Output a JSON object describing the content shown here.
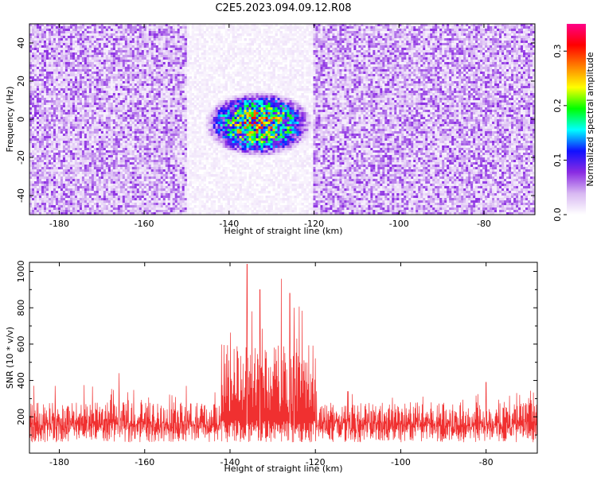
{
  "chart_data": [
    {
      "type": "heatmap",
      "title": "C2E5.2023.094.09.12.R08",
      "xlabel": "Height of straight line (km)",
      "ylabel": "Frequency (Hz)",
      "xlim": [
        -187,
        -68
      ],
      "ylim": [
        -50,
        50
      ],
      "x_ticks": [
        -180,
        -160,
        -140,
        -120,
        -100,
        -80
      ],
      "y_ticks": [
        -40,
        -20,
        0,
        20,
        40
      ],
      "grid": false,
      "colorbar": {
        "label": "Normalized spectral amplitude",
        "range": [
          0.0,
          0.35
        ],
        "ticks": [
          0.0,
          0.1,
          0.2,
          0.3
        ],
        "colormap": [
          "#ffffff",
          "#d8b8f2",
          "#8a2be2",
          "#1010ff",
          "#00ffff",
          "#00ff00",
          "#ffff00",
          "#ff8000",
          "#ff0000",
          "#ff0088"
        ]
      },
      "regions": [
        {
          "x_range": [
            -187,
            -150
          ],
          "typical_amplitude": 0.05
        },
        {
          "x_range": [
            -150,
            -120
          ],
          "typical_amplitude": 0.01
        },
        {
          "x_range": [
            -120,
            -68
          ],
          "typical_amplitude": 0.05
        }
      ],
      "peak_region": {
        "x_range": [
          -146,
          -120
        ],
        "y_range": [
          -20,
          15
        ],
        "max_amplitude": 0.33
      }
    },
    {
      "type": "line",
      "xlabel": "Height of straight line (km)",
      "ylabel": "SNR (10 * v/v)",
      "xlim": [
        -187,
        -68
      ],
      "ylim": [
        0,
        1050
      ],
      "x_ticks": [
        -180,
        -160,
        -140,
        -120,
        -100,
        -80
      ],
      "y_ticks": [
        200,
        400,
        600,
        800,
        1000
      ],
      "grid": false,
      "color": "#f03030",
      "baseline_range": [
        60,
        260
      ],
      "segments": [
        {
          "x_range": [
            -187,
            -142
          ],
          "typical_max": 280,
          "peak": 440
        },
        {
          "x_range": [
            -142,
            -120
          ],
          "typical_max": 600,
          "peak": 1040
        },
        {
          "x_range": [
            -120,
            -68
          ],
          "typical_max": 280,
          "peak": 390
        }
      ],
      "peaks": [
        {
          "x": -136,
          "y": 1040
        },
        {
          "x": -128,
          "y": 960
        },
        {
          "x": -133,
          "y": 900
        },
        {
          "x": -126,
          "y": 880
        },
        {
          "x": -125,
          "y": 800
        },
        {
          "x": -181,
          "y": 370
        },
        {
          "x": -166,
          "y": 440
        },
        {
          "x": -80,
          "y": 390
        }
      ]
    }
  ]
}
